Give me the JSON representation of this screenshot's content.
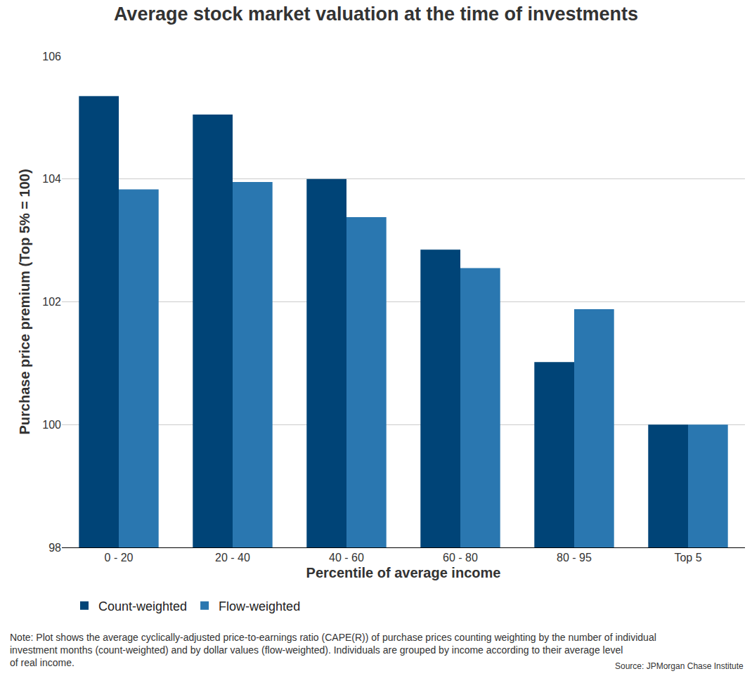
{
  "chart_data": {
    "type": "bar",
    "title": "Average stock market valuation at the time of investments",
    "x_label": "Percentile of average income",
    "y_label": "Purchase price premium (Top 5% = 100)",
    "categories": [
      "0 - 20",
      "20 - 40",
      "40 - 60",
      "60 - 80",
      "80 - 95",
      "Top 5"
    ],
    "series": [
      {
        "name": "Count-weighted",
        "color": "#004477",
        "values": [
          105.35,
          105.05,
          104.0,
          102.85,
          101.02,
          100.0
        ]
      },
      {
        "name": "Flow-weighted",
        "color": "#2a77b0",
        "values": [
          103.83,
          103.95,
          103.38,
          102.55,
          101.88,
          100.0
        ]
      }
    ],
    "ylim": [
      98,
      106
    ],
    "yticks": [
      98,
      100,
      102,
      104,
      106
    ],
    "grid": true,
    "legend": "bottom",
    "note": [
      "Note: Plot shows the average cyclically-adjusted price-to-earnings ratio (CAPE(R)) of purchase prices counting weighting by the number of individual",
      "investment months (count-weighted) and by dollar values (flow-weighted). Individuals are grouped by income according to their average level",
      "of real income."
    ],
    "source": "Source: JPMorgan Chase Institute"
  }
}
